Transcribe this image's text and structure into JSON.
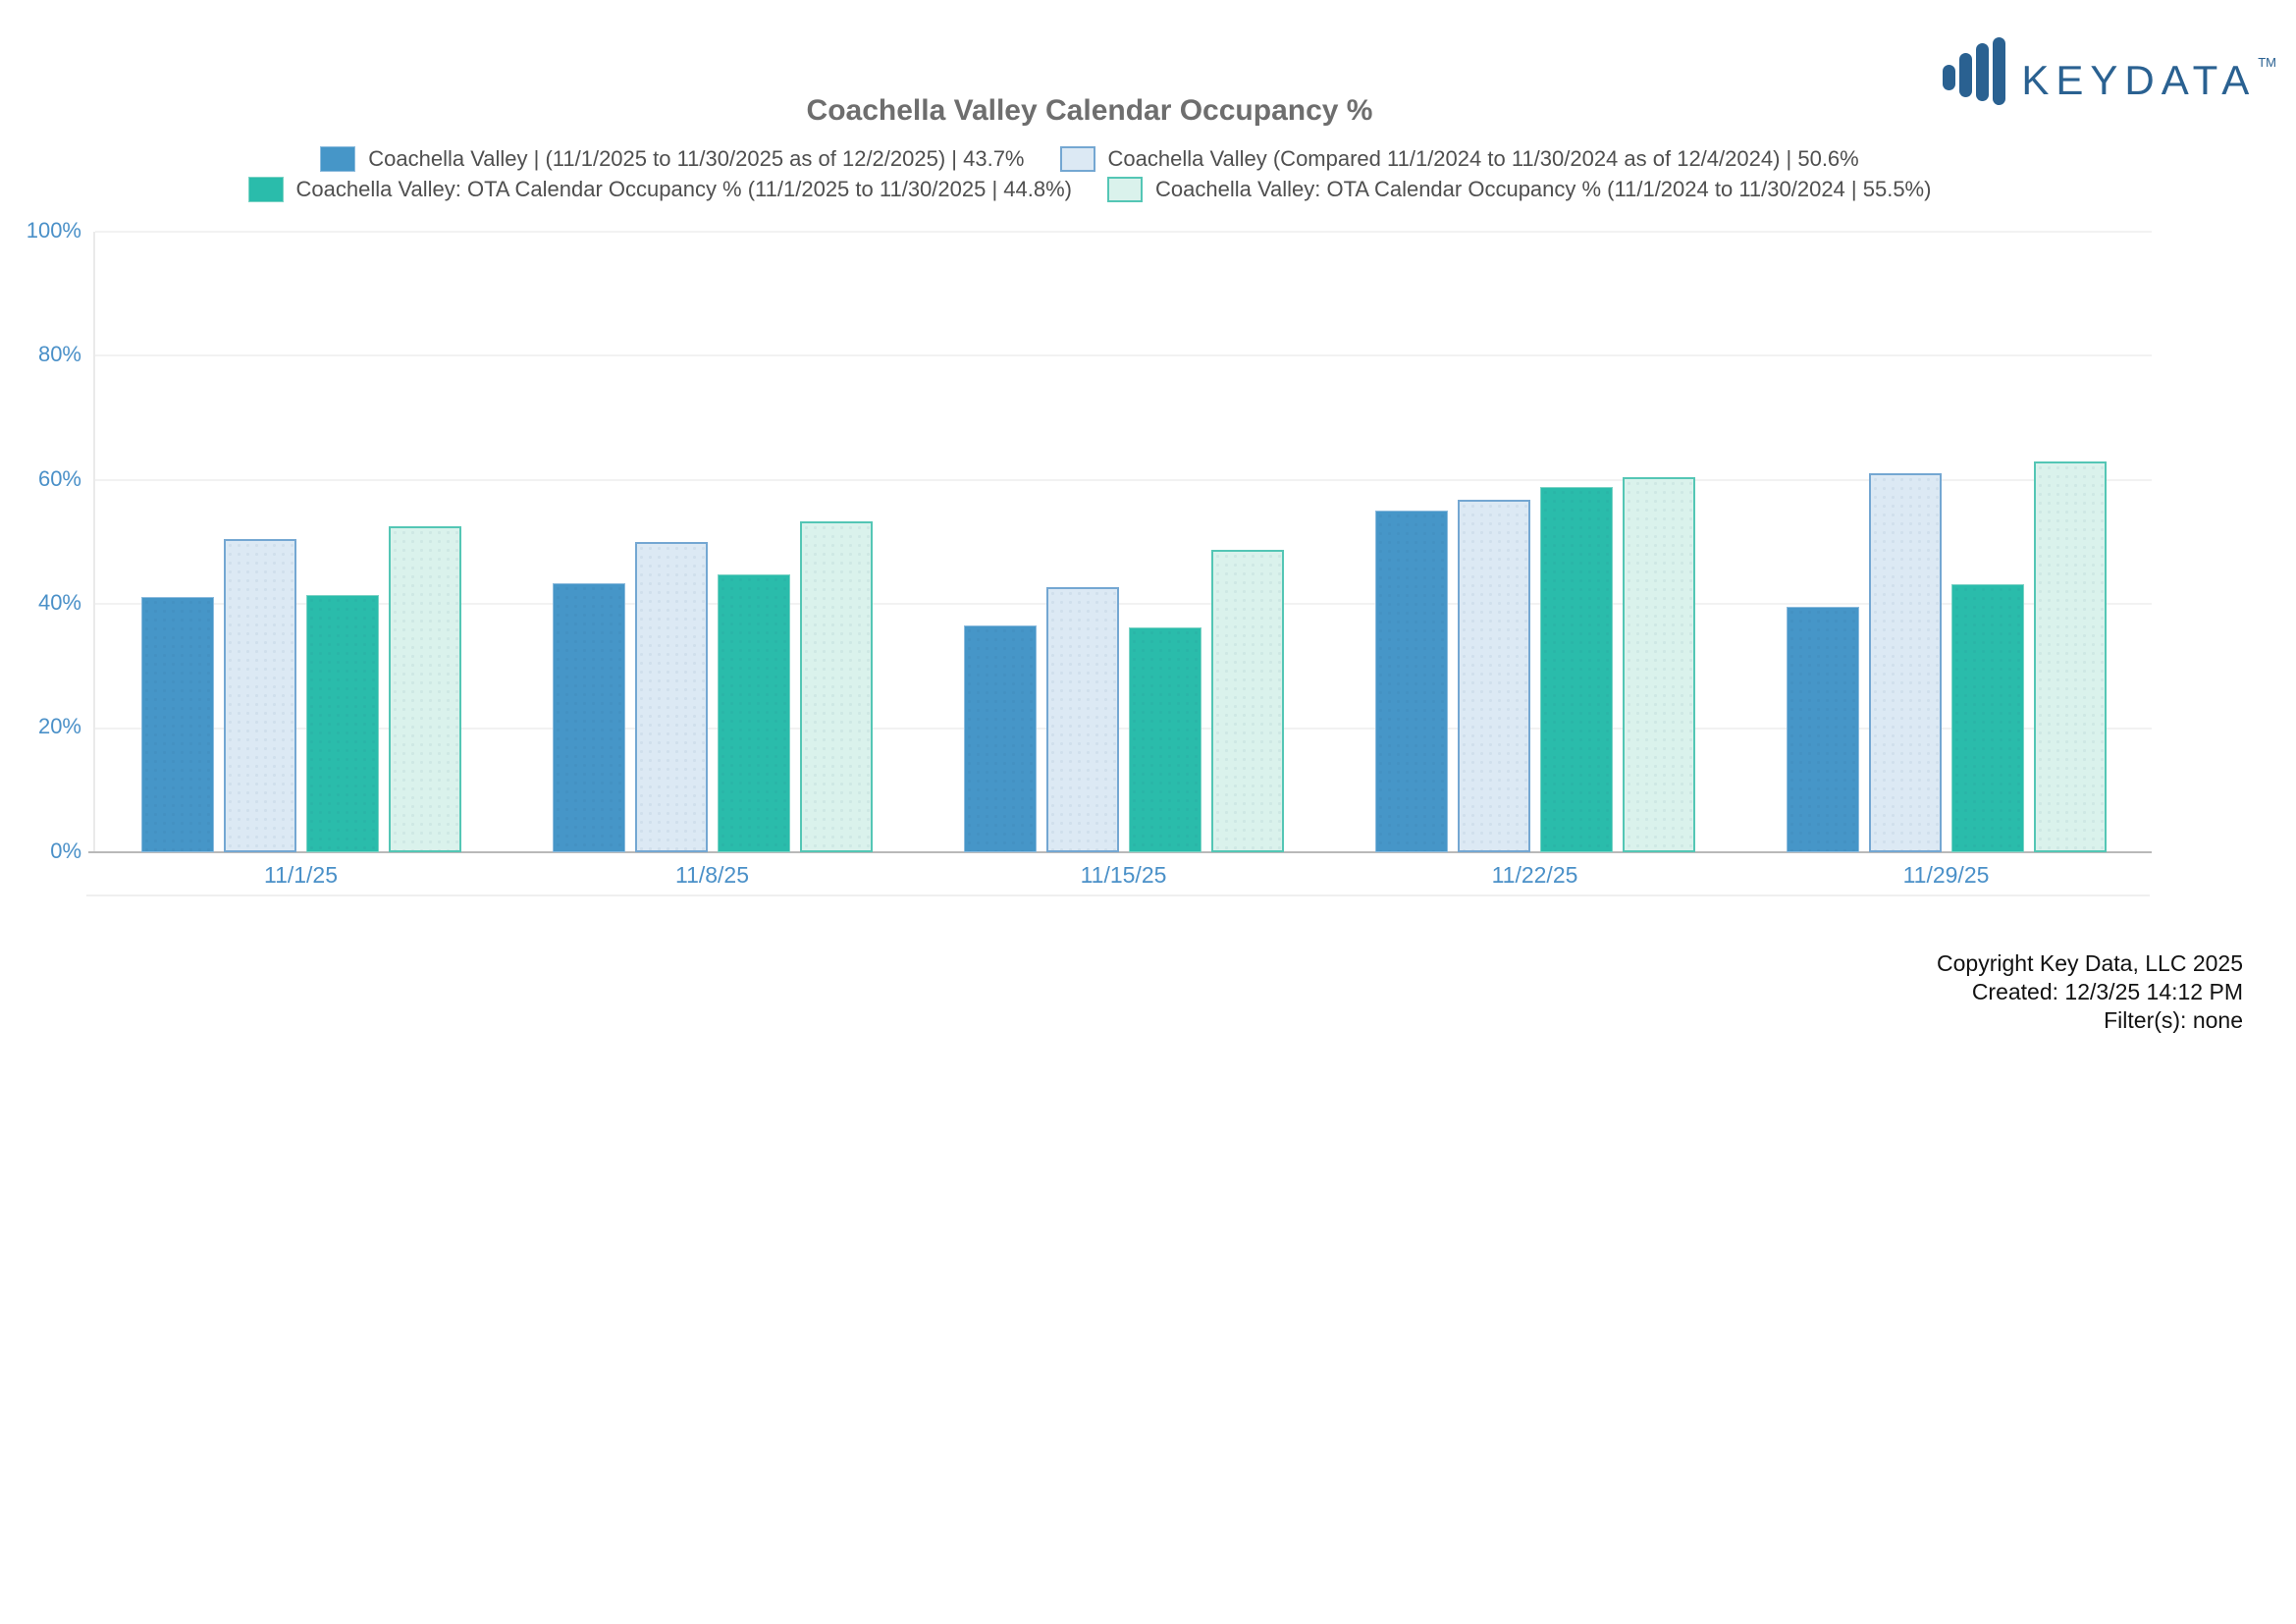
{
  "logo": {
    "text": "KEYDATA",
    "tm": "TM",
    "color": "#2a6191"
  },
  "title": "Coachella Valley Calendar Occupancy %",
  "chart_data": {
    "type": "bar",
    "title": "Coachella Valley Calendar Occupancy %",
    "categories": [
      "11/1/25",
      "11/8/25",
      "11/15/25",
      "11/22/25",
      "11/29/25"
    ],
    "series": [
      {
        "name": "Coachella Valley | (11/1/2025 to 11/30/2025 as of 12/2/2025) | 43.7%",
        "values": [
          41.2,
          43.3,
          36.5,
          55.1,
          39.5
        ],
        "fill": "#4696c8",
        "border": "#8cbbdd"
      },
      {
        "name": "Coachella Valley (Compared 11/1/2024 to 11/30/2024 as of 12/4/2024) | 50.6%",
        "values": [
          50.4,
          50.0,
          42.7,
          56.8,
          61.1
        ],
        "fill": "#dce9f4",
        "border": "#74a7d2"
      },
      {
        "name": "Coachella Valley: OTA Calendar Occupancy % (11/1/2025 to 11/30/2025 | 44.8%)",
        "values": [
          41.5,
          44.8,
          36.2,
          58.9,
          43.2
        ],
        "fill": "#2abcab",
        "border": "#7bd2c4"
      },
      {
        "name": "Coachella Valley: OTA Calendar Occupancy % (11/1/2024 to 11/30/2024 | 55.5%)",
        "values": [
          52.5,
          53.3,
          48.7,
          60.5,
          62.9
        ],
        "fill": "#daf2ec",
        "border": "#54c6b5"
      }
    ],
    "ylim": [
      0,
      100
    ],
    "yticks": [
      "100%",
      "80%",
      "60%",
      "40%",
      "20%",
      "0%"
    ],
    "grid": true,
    "legend_position": "top",
    "axis_label_color": "#4a90c8"
  },
  "footer": {
    "copyright": "Copyright Key Data, LLC 2025",
    "created": "Created: 12/3/25 14:12 PM",
    "filters": "Filter(s): none"
  }
}
